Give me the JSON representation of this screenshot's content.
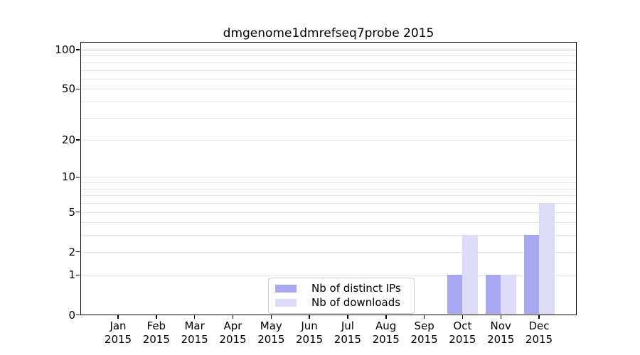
{
  "chart_data": {
    "type": "bar",
    "title": "dmgenome1dmrefseq7probe 2015",
    "xlabel": "",
    "ylabel": "",
    "categories": [
      "Jan",
      "Feb",
      "Mar",
      "Apr",
      "May",
      "Jun",
      "Jul",
      "Aug",
      "Sep",
      "Oct",
      "Nov",
      "Dec"
    ],
    "x_tick_year": "2015",
    "series": [
      {
        "name": "Nb of distinct IPs",
        "color": "#a8a8f2",
        "values": [
          0,
          0,
          0,
          0,
          0,
          0,
          0,
          0,
          0,
          1,
          1,
          3
        ]
      },
      {
        "name": "Nb of downloads",
        "color": "#dcdcf8",
        "values": [
          0,
          0,
          0,
          0,
          0,
          0,
          0,
          0,
          0,
          3,
          1,
          6
        ]
      }
    ],
    "y_scale": "log10(value+1)",
    "y_tick_values": [
      0,
      1,
      2,
      5,
      10,
      20,
      50,
      100
    ],
    "gridline_values": [
      1,
      2,
      3,
      4,
      5,
      6,
      7,
      8,
      9,
      10,
      20,
      30,
      40,
      50,
      60,
      70,
      80,
      90,
      100
    ],
    "ylim": [
      0,
      115
    ],
    "grid": true,
    "legend_location": "lower-center",
    "colors": {
      "background": "#ffffff",
      "grid": "#e6e6e6",
      "grid_top": "#c8c8c8",
      "axis": "#000000",
      "text": "#000000",
      "legend_border": "#cccccc"
    }
  }
}
